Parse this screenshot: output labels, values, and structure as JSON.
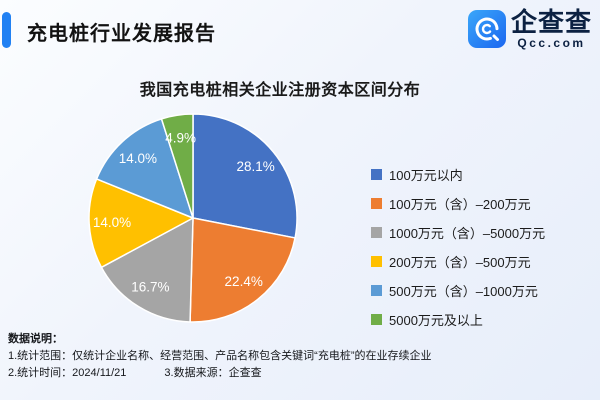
{
  "header": {
    "title": "充电桩行业发展报告"
  },
  "logo": {
    "name": "企查查",
    "domain": "Qcc.com",
    "icon": "qcc-logo-icon",
    "brand_color": "#1e79f3"
  },
  "chart_data": {
    "type": "pie",
    "title": "我国充电桩相关企业注册资本区间分布",
    "legend_position": "right",
    "label_format": "percent-one-decimal",
    "start_angle_deg": 0,
    "direction": "clockwise",
    "slices": [
      {
        "label": "100万元以内",
        "value": 28.1,
        "color": "#4472C4"
      },
      {
        "label": "100万元（含）–200万元",
        "value": 22.4,
        "color": "#ED7D31"
      },
      {
        "label": "1000万元（含）–5000万元",
        "value": 16.7,
        "color": "#A5A5A5"
      },
      {
        "label": "200万元（含）–500万元",
        "value": 14.0,
        "color": "#FFC000"
      },
      {
        "label": "500万元（含）–1000万元",
        "value": 14.0,
        "color": "#5B9BD5"
      },
      {
        "label": "5000万元及以上",
        "value": 4.9,
        "color": "#70AD47"
      }
    ]
  },
  "notes": {
    "heading": "数据说明：",
    "line1": "1.统计范围：仅统计企业名称、经营范围、产品名称包含关键词“充电桩”的在业存续企业",
    "line2a": "2.统计时间：2024/11/21",
    "line2b": "3.数据来源：企查查"
  }
}
